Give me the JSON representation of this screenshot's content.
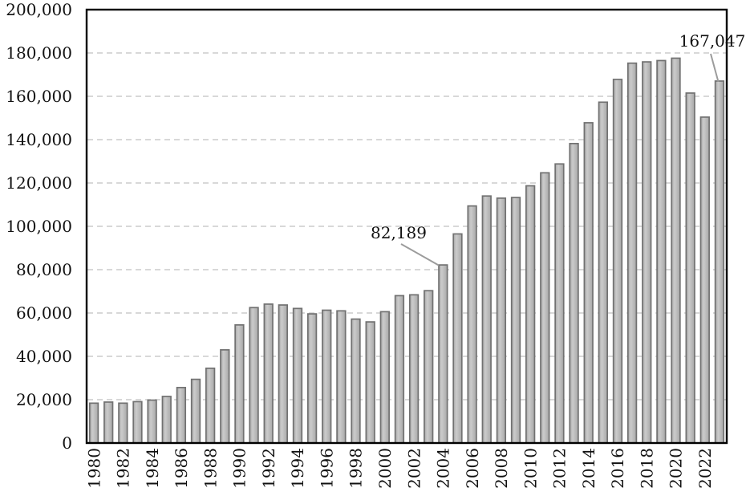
{
  "chart_data": {
    "type": "bar",
    "title": "",
    "xlabel": "",
    "ylabel": "",
    "categories": [
      "1980",
      "1981",
      "1982",
      "1983",
      "1984",
      "1985",
      "1986",
      "1987",
      "1988",
      "1989",
      "1990",
      "1991",
      "1992",
      "1993",
      "1994",
      "1995",
      "1996",
      "1997",
      "1998",
      "1999",
      "2000",
      "2001",
      "2002",
      "2003",
      "2004",
      "2005",
      "2006",
      "2007",
      "2008",
      "2009",
      "2010",
      "2011",
      "2012",
      "2013",
      "2014",
      "2015",
      "2016",
      "2017",
      "2018",
      "2019",
      "2020",
      "2021",
      "2022",
      "2023"
    ],
    "values": [
      18400,
      18900,
      18400,
      19100,
      19800,
      21500,
      25600,
      29400,
      34500,
      43000,
      54500,
      62500,
      64100,
      63700,
      62100,
      59600,
      61300,
      61000,
      57200,
      55900,
      60600,
      68000,
      68400,
      70300,
      82189,
      96500,
      109400,
      114000,
      113000,
      113300,
      118700,
      124700,
      128800,
      138200,
      147800,
      157300,
      167800,
      175300,
      175900,
      176500,
      177600,
      161500,
      150400,
      167047
    ],
    "ylim": [
      0,
      200000
    ],
    "ytick_step": 20000,
    "ytick_labels": [
      "0",
      "20,000",
      "40,000",
      "60,000",
      "80,000",
      "100,000",
      "120,000",
      "140,000",
      "160,000",
      "180,000",
      "200,000"
    ],
    "xtick_labels": [
      "1980",
      "1982",
      "1984",
      "1986",
      "1988",
      "1990",
      "1992",
      "1994",
      "1996",
      "1998",
      "2000",
      "2002",
      "2004",
      "2006",
      "2008",
      "2010",
      "2012",
      "2014",
      "2016",
      "2018",
      "2020",
      "2022"
    ],
    "xtick_every": 2,
    "grid": "horizontal-dashed",
    "legend": "none",
    "annotations": [
      {
        "text": "82,189",
        "category": "2004",
        "value": 82189
      },
      {
        "text": "167,047",
        "category": "2023",
        "value": 167047
      }
    ],
    "colors": {
      "background": "#ffffff",
      "bar_fill_edge": "#a8a8a8",
      "bar_fill_center": "#cbcbcb",
      "bar_border": "#717171",
      "gridline": "#d8d8d8",
      "plot_border": "#000000",
      "leader_line": "#9c9c9c",
      "text": "#111111"
    }
  }
}
